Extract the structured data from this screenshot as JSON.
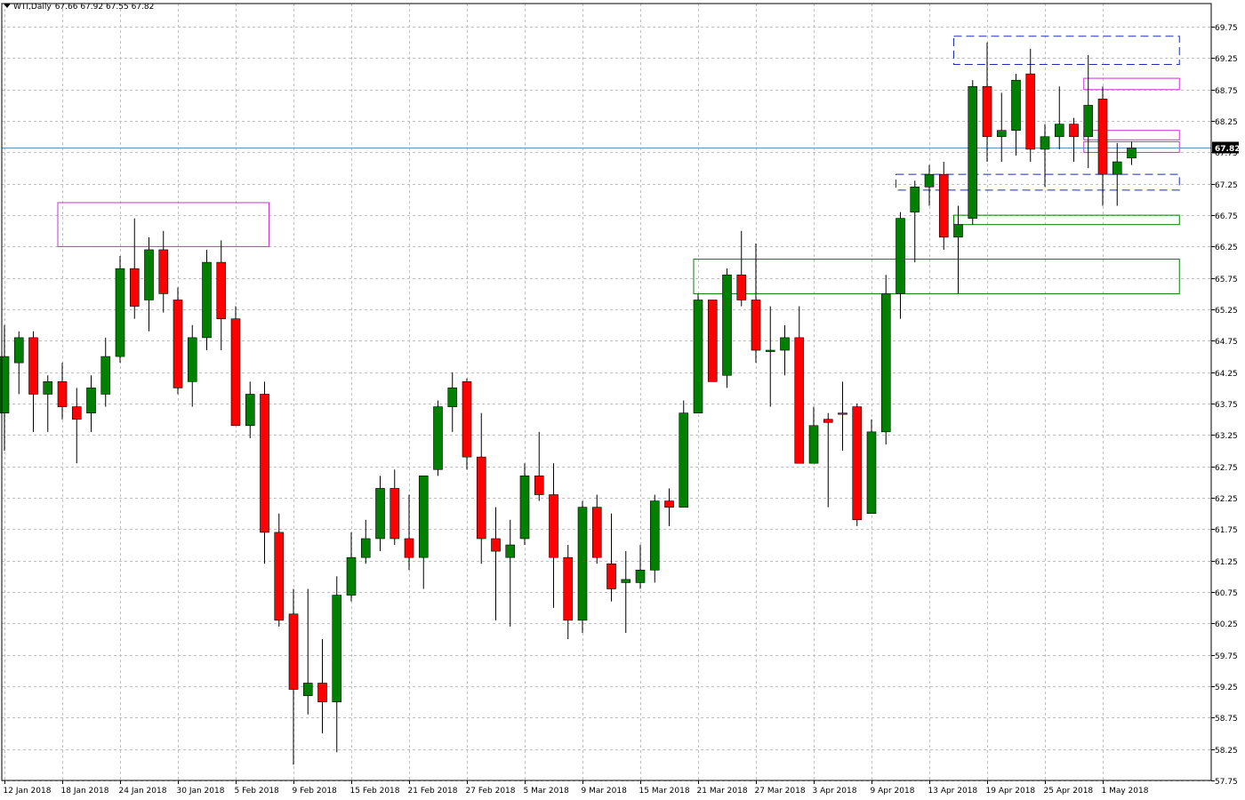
{
  "header": {
    "symbol": "WTI,Daily",
    "ohlc": "67.66 67.92 67.55 67.82"
  },
  "colors": {
    "bull": "#008000",
    "bear": "#ff0000",
    "grid": "#c0c0c0",
    "supply_zone": "#cc33cc",
    "demand_zone": "#008000",
    "dashed_zone": "#1a2fb0",
    "price_line": "#6a8fb5"
  },
  "chart_data": {
    "type": "candlestick",
    "title": "",
    "ylim": [
      57.75,
      70.0
    ],
    "y_ticks": [
      "69.75",
      "69.25",
      "68.75",
      "68.25",
      "67.75",
      "67.25",
      "66.75",
      "66.25",
      "65.75",
      "65.25",
      "64.75",
      "64.25",
      "63.75",
      "63.25",
      "62.75",
      "62.25",
      "61.75",
      "61.25",
      "60.75",
      "60.25",
      "59.75",
      "59.25",
      "58.75",
      "58.25",
      "57.75"
    ],
    "x_tick_labels": [
      "12 Jan 2018",
      "18 Jan 2018",
      "24 Jan 2018",
      "30 Jan 2018",
      "5 Feb 2018",
      "9 Feb 2018",
      "15 Feb 2018",
      "21 Feb 2018",
      "27 Feb 2018",
      "5 Mar 2018",
      "9 Mar 2018",
      "15 Mar 2018",
      "21 Mar 2018",
      "27 Mar 2018",
      "3 Apr 2018",
      "9 Apr 2018",
      "13 Apr 2018",
      "19 Apr 2018",
      "25 Apr 2018",
      "1 May 2018"
    ],
    "current_price": "67.82",
    "candles": [
      {
        "o": 63.6,
        "h": 65.0,
        "l": 63.0,
        "c": 64.5
      },
      {
        "o": 64.4,
        "h": 64.9,
        "l": 63.9,
        "c": 64.8
      },
      {
        "o": 64.8,
        "h": 64.9,
        "l": 63.3,
        "c": 63.9
      },
      {
        "o": 63.9,
        "h": 64.2,
        "l": 63.3,
        "c": 64.1
      },
      {
        "o": 64.1,
        "h": 64.4,
        "l": 63.5,
        "c": 63.7
      },
      {
        "o": 63.7,
        "h": 64.0,
        "l": 62.8,
        "c": 63.5
      },
      {
        "o": 63.6,
        "h": 64.2,
        "l": 63.3,
        "c": 64.0
      },
      {
        "o": 63.9,
        "h": 64.8,
        "l": 63.7,
        "c": 64.5
      },
      {
        "o": 64.5,
        "h": 66.1,
        "l": 64.4,
        "c": 65.9
      },
      {
        "o": 65.9,
        "h": 66.7,
        "l": 65.1,
        "c": 65.3
      },
      {
        "o": 65.4,
        "h": 66.4,
        "l": 64.9,
        "c": 66.2
      },
      {
        "o": 66.2,
        "h": 66.5,
        "l": 65.2,
        "c": 65.5
      },
      {
        "o": 65.4,
        "h": 65.6,
        "l": 63.9,
        "c": 64.0
      },
      {
        "o": 64.1,
        "h": 65.0,
        "l": 63.7,
        "c": 64.8
      },
      {
        "o": 64.8,
        "h": 66.2,
        "l": 64.6,
        "c": 66.0
      },
      {
        "o": 66.0,
        "h": 66.35,
        "l": 64.6,
        "c": 65.1
      },
      {
        "o": 65.1,
        "h": 65.3,
        "l": 63.4,
        "c": 63.4
      },
      {
        "o": 63.4,
        "h": 64.1,
        "l": 63.2,
        "c": 63.9
      },
      {
        "o": 63.9,
        "h": 64.1,
        "l": 61.2,
        "c": 61.7
      },
      {
        "o": 61.7,
        "h": 62.0,
        "l": 60.2,
        "c": 60.3
      },
      {
        "o": 60.4,
        "h": 60.8,
        "l": 58.0,
        "c": 59.2
      },
      {
        "o": 59.1,
        "h": 60.8,
        "l": 58.8,
        "c": 59.3
      },
      {
        "o": 59.3,
        "h": 60.0,
        "l": 58.5,
        "c": 59.0
      },
      {
        "o": 59.0,
        "h": 61.0,
        "l": 58.2,
        "c": 60.7
      },
      {
        "o": 60.7,
        "h": 61.7,
        "l": 60.6,
        "c": 61.3
      },
      {
        "o": 61.3,
        "h": 61.9,
        "l": 61.2,
        "c": 61.6
      },
      {
        "o": 61.6,
        "h": 62.6,
        "l": 61.4,
        "c": 62.4
      },
      {
        "o": 62.4,
        "h": 62.7,
        "l": 61.5,
        "c": 61.6
      },
      {
        "o": 61.6,
        "h": 62.3,
        "l": 61.1,
        "c": 61.3
      },
      {
        "o": 61.3,
        "h": 62.6,
        "l": 60.8,
        "c": 62.6
      },
      {
        "o": 62.7,
        "h": 63.8,
        "l": 62.6,
        "c": 63.7
      },
      {
        "o": 63.7,
        "h": 64.25,
        "l": 63.3,
        "c": 64.0
      },
      {
        "o": 64.1,
        "h": 64.15,
        "l": 62.7,
        "c": 62.9
      },
      {
        "o": 62.9,
        "h": 63.6,
        "l": 61.2,
        "c": 61.6
      },
      {
        "o": 61.6,
        "h": 62.1,
        "l": 60.3,
        "c": 61.4
      },
      {
        "o": 61.3,
        "h": 61.9,
        "l": 60.2,
        "c": 61.5
      },
      {
        "o": 61.6,
        "h": 62.8,
        "l": 61.5,
        "c": 62.6
      },
      {
        "o": 62.6,
        "h": 63.3,
        "l": 62.2,
        "c": 62.3
      },
      {
        "o": 62.3,
        "h": 62.8,
        "l": 60.5,
        "c": 61.3
      },
      {
        "o": 61.3,
        "h": 61.5,
        "l": 60.0,
        "c": 60.3
      },
      {
        "o": 60.3,
        "h": 62.2,
        "l": 60.1,
        "c": 62.1
      },
      {
        "o": 62.1,
        "h": 62.3,
        "l": 61.2,
        "c": 61.3
      },
      {
        "o": 61.2,
        "h": 62.0,
        "l": 60.6,
        "c": 60.8
      },
      {
        "o": 60.9,
        "h": 61.4,
        "l": 60.1,
        "c": 60.95
      },
      {
        "o": 60.9,
        "h": 61.5,
        "l": 60.8,
        "c": 61.1
      },
      {
        "o": 61.1,
        "h": 62.3,
        "l": 60.9,
        "c": 62.2
      },
      {
        "o": 62.2,
        "h": 62.4,
        "l": 61.8,
        "c": 62.1
      },
      {
        "o": 62.1,
        "h": 63.8,
        "l": 62.1,
        "c": 63.6
      },
      {
        "o": 63.6,
        "h": 65.5,
        "l": 63.6,
        "c": 65.4
      },
      {
        "o": 65.4,
        "h": 65.4,
        "l": 64.1,
        "c": 64.1
      },
      {
        "o": 64.2,
        "h": 65.9,
        "l": 64.0,
        "c": 65.8
      },
      {
        "o": 65.8,
        "h": 66.5,
        "l": 65.3,
        "c": 65.4
      },
      {
        "o": 65.4,
        "h": 66.3,
        "l": 64.4,
        "c": 64.6
      },
      {
        "o": 64.6,
        "h": 65.3,
        "l": 63.7,
        "c": 64.6
      },
      {
        "o": 64.6,
        "h": 65.0,
        "l": 64.2,
        "c": 64.8
      },
      {
        "o": 64.8,
        "h": 65.3,
        "l": 62.8,
        "c": 62.8
      },
      {
        "o": 62.8,
        "h": 63.7,
        "l": 62.8,
        "c": 63.4
      },
      {
        "o": 63.5,
        "h": 63.6,
        "l": 62.1,
        "c": 63.45
      },
      {
        "o": 63.6,
        "h": 64.1,
        "l": 63.0,
        "c": 63.6
      },
      {
        "o": 63.7,
        "h": 63.75,
        "l": 61.8,
        "c": 61.9
      },
      {
        "o": 62.0,
        "h": 63.5,
        "l": 62.0,
        "c": 63.3
      },
      {
        "o": 63.3,
        "h": 65.8,
        "l": 63.1,
        "c": 65.5
      },
      {
        "o": 65.5,
        "h": 66.8,
        "l": 65.1,
        "c": 66.7
      },
      {
        "o": 66.8,
        "h": 67.3,
        "l": 66.0,
        "c": 67.2
      },
      {
        "o": 67.2,
        "h": 67.55,
        "l": 66.9,
        "c": 67.4
      },
      {
        "o": 67.4,
        "h": 67.6,
        "l": 66.2,
        "c": 66.4
      },
      {
        "o": 66.4,
        "h": 66.9,
        "l": 65.5,
        "c": 66.6
      },
      {
        "o": 66.7,
        "h": 68.9,
        "l": 66.6,
        "c": 68.8
      },
      {
        "o": 68.8,
        "h": 69.5,
        "l": 67.6,
        "c": 68.0
      },
      {
        "o": 68.0,
        "h": 68.7,
        "l": 67.6,
        "c": 68.1
      },
      {
        "o": 68.1,
        "h": 69.0,
        "l": 67.7,
        "c": 68.9
      },
      {
        "o": 69.0,
        "h": 69.4,
        "l": 67.6,
        "c": 67.8
      },
      {
        "o": 67.8,
        "h": 68.2,
        "l": 67.2,
        "c": 68.0
      },
      {
        "o": 68.0,
        "h": 68.8,
        "l": 67.8,
        "c": 68.2
      },
      {
        "o": 68.2,
        "h": 68.3,
        "l": 67.6,
        "c": 68.0
      },
      {
        "o": 68.0,
        "h": 69.3,
        "l": 67.5,
        "c": 68.5
      },
      {
        "o": 68.6,
        "h": 68.8,
        "l": 66.9,
        "c": 67.4
      },
      {
        "o": 67.4,
        "h": 67.9,
        "l": 66.9,
        "c": 67.6
      },
      {
        "o": 67.66,
        "h": 67.92,
        "l": 67.55,
        "c": 67.82
      }
    ],
    "zones": [
      {
        "kind": "supply",
        "lo": 66.25,
        "hi": 66.95,
        "from": 4,
        "to": 18
      },
      {
        "kind": "supply",
        "lo": 68.75,
        "hi": 68.93,
        "from": 75,
        "to": 81
      },
      {
        "kind": "supply",
        "lo": 67.95,
        "hi": 68.1,
        "from": 75,
        "to": 81
      },
      {
        "kind": "supply",
        "lo": 67.75,
        "hi": 67.92,
        "from": 75,
        "to": 81
      },
      {
        "kind": "demand",
        "lo": 65.5,
        "hi": 66.05,
        "from": 48,
        "to": 81
      },
      {
        "kind": "demand",
        "lo": 66.6,
        "hi": 66.75,
        "from": 66,
        "to": 81
      },
      {
        "kind": "dashed",
        "lo": 69.15,
        "hi": 69.6,
        "from": 66,
        "to": 81
      },
      {
        "kind": "dashed",
        "lo": 67.15,
        "hi": 67.4,
        "from": 62,
        "to": 81
      }
    ]
  }
}
